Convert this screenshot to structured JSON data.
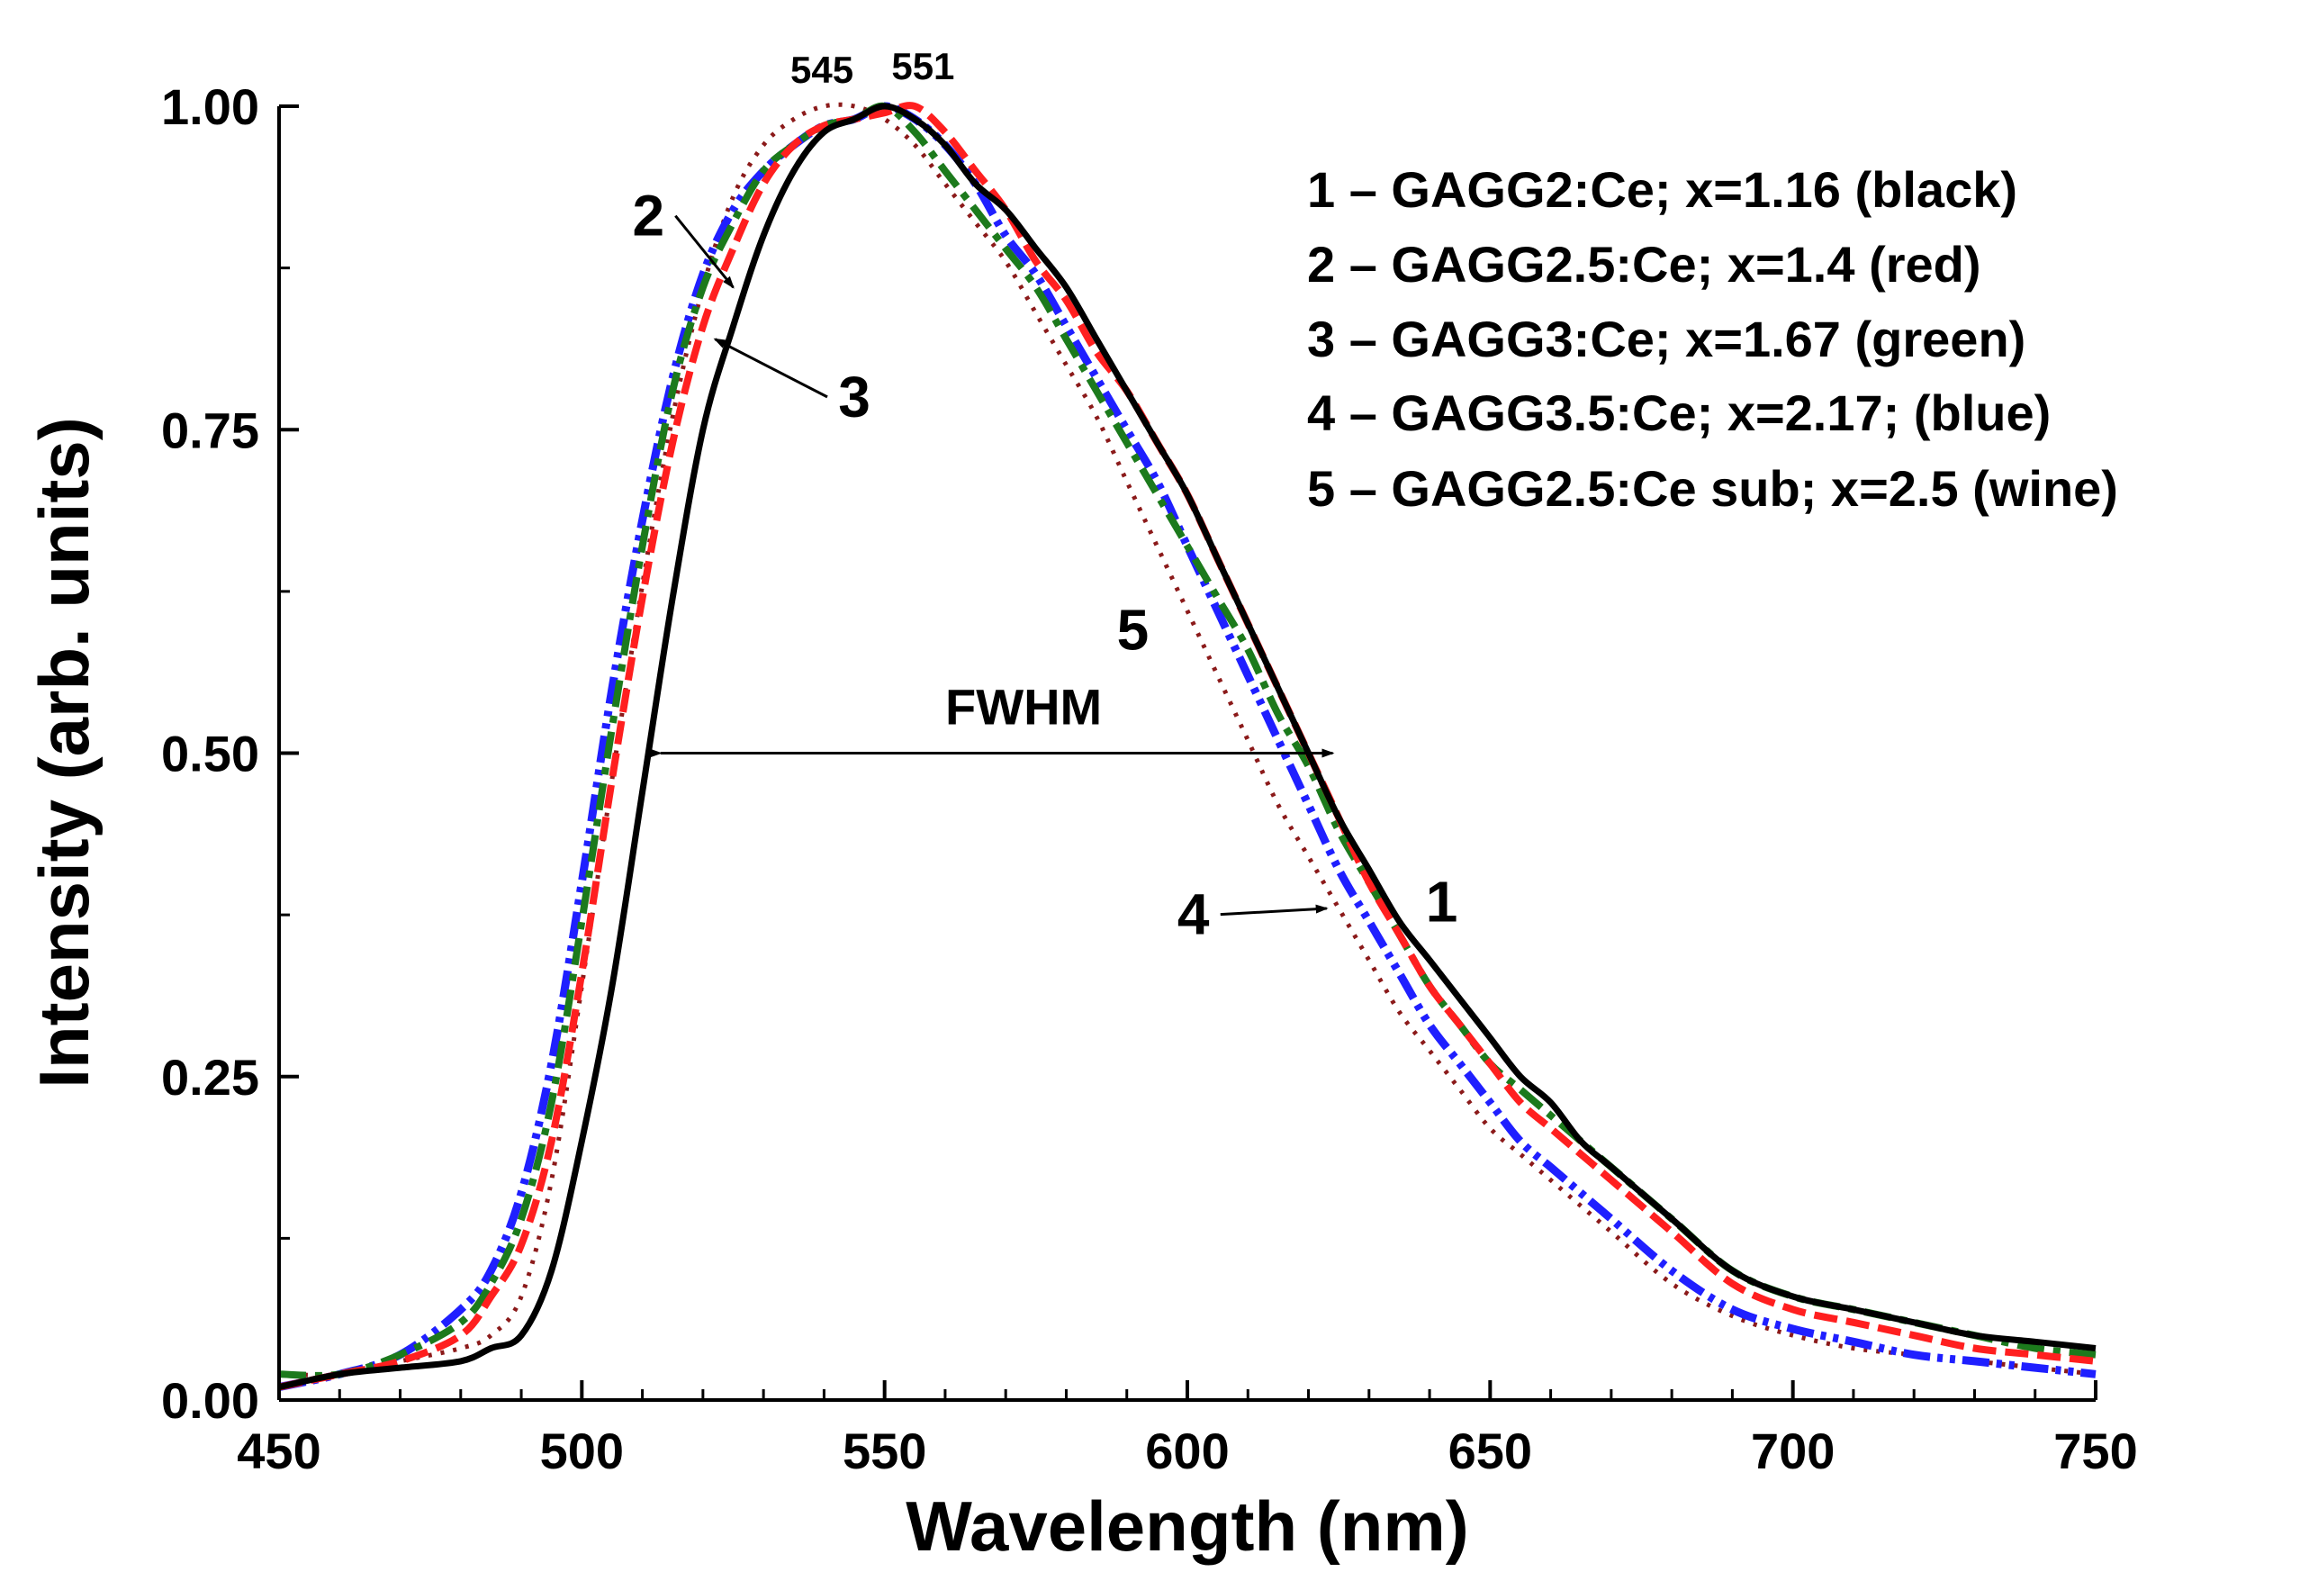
{
  "chart_data": {
    "type": "line",
    "title": "",
    "xlabel": "Wavelength (nm)",
    "ylabel": "Intensity (arb. units)",
    "xlim": [
      450,
      750
    ],
    "ylim": [
      0,
      1
    ],
    "x_ticks": [
      450,
      500,
      550,
      600,
      650,
      700,
      750
    ],
    "x_tick_labels": [
      "450",
      "500",
      "550",
      "600",
      "650",
      "700",
      "750"
    ],
    "y_ticks": [
      0,
      0.25,
      0.5,
      0.75,
      1.0
    ],
    "y_tick_labels": [
      "0.00",
      "0.25",
      "0.50",
      "0.75",
      "1.00"
    ],
    "grid": false,
    "legend_position": "top-right",
    "series": [
      {
        "name": "1 – GAGG2:Ce; x=1.16 (black)",
        "number": "1",
        "color": "#000000",
        "style": "solid",
        "x": [
          450,
          460,
          470,
          480,
          485,
          490,
          495,
          500,
          505,
          510,
          515,
          520,
          525,
          530,
          535,
          540,
          545,
          550,
          555,
          560,
          565,
          570,
          575,
          580,
          585,
          590,
          595,
          600,
          605,
          610,
          615,
          620,
          625,
          630,
          635,
          640,
          645,
          650,
          655,
          660,
          665,
          670,
          680,
          690,
          700,
          710,
          720,
          730,
          740,
          750
        ],
        "y": [
          0.01,
          0.02,
          0.025,
          0.03,
          0.04,
          0.05,
          0.1,
          0.2,
          0.32,
          0.47,
          0.62,
          0.75,
          0.83,
          0.9,
          0.95,
          0.98,
          0.99,
          1.0,
          0.99,
          0.97,
          0.94,
          0.92,
          0.89,
          0.86,
          0.82,
          0.78,
          0.74,
          0.7,
          0.65,
          0.6,
          0.55,
          0.5,
          0.45,
          0.41,
          0.37,
          0.34,
          0.31,
          0.28,
          0.25,
          0.23,
          0.2,
          0.18,
          0.14,
          0.1,
          0.08,
          0.07,
          0.06,
          0.05,
          0.045,
          0.04
        ]
      },
      {
        "name": "2 – GAGG2.5:Ce; x=1.4 (red)",
        "number": "2",
        "color": "#ff1f1f",
        "style": "dash",
        "x": [
          450,
          460,
          470,
          480,
          485,
          490,
          495,
          500,
          505,
          510,
          515,
          520,
          525,
          530,
          535,
          540,
          545,
          550,
          555,
          560,
          565,
          570,
          575,
          580,
          585,
          590,
          595,
          600,
          605,
          610,
          615,
          620,
          625,
          630,
          635,
          640,
          645,
          650,
          655,
          660,
          665,
          670,
          680,
          690,
          700,
          710,
          720,
          730,
          740,
          750
        ],
        "y": [
          0.01,
          0.02,
          0.03,
          0.05,
          0.08,
          0.12,
          0.2,
          0.33,
          0.48,
          0.62,
          0.74,
          0.83,
          0.89,
          0.94,
          0.97,
          0.985,
          0.99,
          0.995,
          1.0,
          0.98,
          0.95,
          0.92,
          0.88,
          0.85,
          0.81,
          0.78,
          0.74,
          0.7,
          0.65,
          0.6,
          0.55,
          0.5,
          0.45,
          0.4,
          0.36,
          0.32,
          0.29,
          0.26,
          0.23,
          0.21,
          0.19,
          0.17,
          0.13,
          0.09,
          0.07,
          0.06,
          0.05,
          0.04,
          0.035,
          0.03
        ]
      },
      {
        "name": "3 – GAGG3:Ce; x=1.67 (green)",
        "number": "3",
        "color": "#1c7a1c",
        "style": "dashdot",
        "x": [
          450,
          460,
          470,
          480,
          485,
          490,
          495,
          500,
          505,
          510,
          515,
          520,
          525,
          530,
          535,
          540,
          545,
          550,
          555,
          560,
          565,
          570,
          575,
          580,
          585,
          590,
          595,
          600,
          605,
          610,
          615,
          620,
          625,
          630,
          635,
          640,
          645,
          650,
          655,
          660,
          665,
          670,
          680,
          690,
          700,
          710,
          720,
          730,
          740,
          750
        ],
        "y": [
          0.02,
          0.02,
          0.035,
          0.06,
          0.09,
          0.14,
          0.23,
          0.37,
          0.52,
          0.66,
          0.78,
          0.86,
          0.91,
          0.95,
          0.97,
          0.985,
          0.99,
          1.0,
          0.98,
          0.95,
          0.92,
          0.89,
          0.86,
          0.82,
          0.78,
          0.74,
          0.7,
          0.66,
          0.62,
          0.58,
          0.53,
          0.49,
          0.44,
          0.4,
          0.36,
          0.32,
          0.29,
          0.26,
          0.24,
          0.22,
          0.2,
          0.18,
          0.14,
          0.1,
          0.08,
          0.07,
          0.06,
          0.05,
          0.04,
          0.035
        ]
      },
      {
        "name": "4 – GAGG3.5:Ce; x=2.17; (blue)",
        "number": "4",
        "color": "#1f1fff",
        "style": "dashdotdot",
        "x": [
          450,
          460,
          470,
          480,
          485,
          490,
          495,
          500,
          505,
          510,
          515,
          520,
          525,
          530,
          535,
          540,
          545,
          550,
          555,
          560,
          565,
          570,
          575,
          580,
          585,
          590,
          595,
          600,
          605,
          610,
          615,
          620,
          625,
          630,
          635,
          640,
          645,
          650,
          655,
          660,
          665,
          670,
          680,
          690,
          700,
          710,
          720,
          730,
          740,
          750
        ],
        "y": [
          0.01,
          0.02,
          0.035,
          0.07,
          0.1,
          0.16,
          0.26,
          0.4,
          0.55,
          0.68,
          0.79,
          0.87,
          0.92,
          0.95,
          0.97,
          0.985,
          0.99,
          1.0,
          0.99,
          0.97,
          0.94,
          0.9,
          0.87,
          0.83,
          0.79,
          0.75,
          0.71,
          0.66,
          0.61,
          0.56,
          0.51,
          0.46,
          0.41,
          0.37,
          0.33,
          0.29,
          0.26,
          0.23,
          0.2,
          0.18,
          0.16,
          0.14,
          0.1,
          0.07,
          0.055,
          0.045,
          0.035,
          0.03,
          0.025,
          0.02
        ]
      },
      {
        "name": "5 – GAGG2.5:Ce sub; x=2.5 (wine)",
        "number": "5",
        "color": "#8b1a1a",
        "style": "dot",
        "x": [
          450,
          460,
          470,
          480,
          485,
          490,
          495,
          500,
          505,
          510,
          515,
          520,
          525,
          530,
          535,
          540,
          545,
          550,
          555,
          560,
          565,
          570,
          575,
          580,
          585,
          590,
          595,
          600,
          605,
          610,
          615,
          620,
          625,
          630,
          635,
          640,
          645,
          650,
          655,
          660,
          665,
          670,
          680,
          690,
          700,
          710,
          720,
          730,
          740,
          750
        ],
        "y": [
          0.02,
          0.02,
          0.03,
          0.04,
          0.05,
          0.08,
          0.17,
          0.32,
          0.48,
          0.63,
          0.76,
          0.86,
          0.93,
          0.97,
          0.99,
          1.0,
          1.0,
          0.99,
          0.97,
          0.94,
          0.91,
          0.88,
          0.84,
          0.8,
          0.76,
          0.71,
          0.66,
          0.61,
          0.56,
          0.51,
          0.46,
          0.42,
          0.38,
          0.34,
          0.3,
          0.27,
          0.24,
          0.21,
          0.19,
          0.17,
          0.15,
          0.13,
          0.09,
          0.065,
          0.05,
          0.04,
          0.035,
          0.03,
          0.025,
          0.02
        ]
      }
    ],
    "annotations": {
      "fwhm_label": "FWHM",
      "fwhm_x_start": 513,
      "fwhm_x_end": 624,
      "fwhm_y": 0.5,
      "peak_labels": [
        {
          "text": "545",
          "x": 545
        },
        {
          "text": "551",
          "x": 551
        }
      ],
      "curve_numbers": [
        {
          "text": "2",
          "label_x": 511,
          "label_y": 0.9,
          "arrow_x": 525,
          "arrow_y": 0.86
        },
        {
          "text": "3",
          "label_x": 545,
          "label_y": 0.76,
          "arrow_x": 522,
          "arrow_y": 0.82
        },
        {
          "text": "5",
          "label_x": 591,
          "label_y": 0.58,
          "arrow_x": null,
          "arrow_y": null
        },
        {
          "text": "4",
          "label_x": 601,
          "label_y": 0.36,
          "arrow_x": 623,
          "arrow_y": 0.38
        },
        {
          "text": "1",
          "label_x": 642,
          "label_y": 0.37,
          "arrow_x": null,
          "arrow_y": null
        }
      ]
    }
  }
}
